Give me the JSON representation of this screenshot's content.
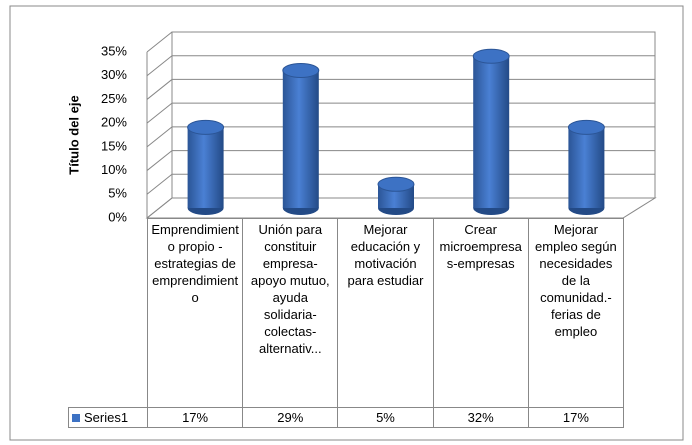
{
  "chart_data": {
    "type": "bar3d",
    "y_axis_label": "Título del eje",
    "categories": [
      "Emprendimiento propio - estrategias de emprendimiento",
      "Unión para constituir empresa-apoyo mutuo, ayuda solidaria-colectas-alternativ...",
      "Mejorar educación y motivación para estudiar",
      "Crear microempresas-empresas",
      "Mejorar empleo según necesidades de la comunidad.-ferias de empleo"
    ],
    "series": [
      {
        "name": "Series1",
        "color": "#3d72c4",
        "values": [
          17,
          29,
          5,
          32,
          17
        ],
        "value_labels": [
          "17%",
          "29%",
          "5%",
          "32%",
          "17%"
        ]
      }
    ],
    "ylim": [
      0,
      35
    ],
    "yticks": [
      {
        "value": 0,
        "label": "0%"
      },
      {
        "value": 5,
        "label": "5%"
      },
      {
        "value": 10,
        "label": "10%"
      },
      {
        "value": 15,
        "label": "15%"
      },
      {
        "value": 20,
        "label": "20%"
      },
      {
        "value": 25,
        "label": "25%"
      },
      {
        "value": 30,
        "label": "30%"
      },
      {
        "value": 35,
        "label": "35%"
      }
    ],
    "grid": true,
    "data_table": true
  }
}
